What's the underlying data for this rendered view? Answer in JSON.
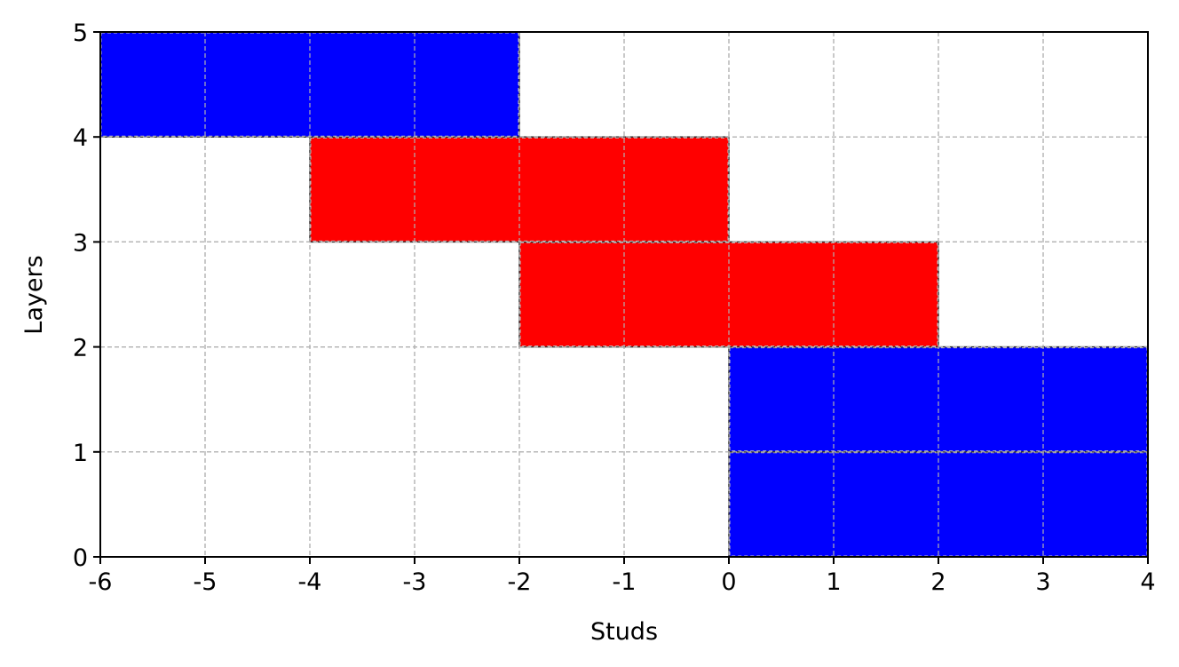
{
  "chart_data": {
    "type": "bar",
    "title": "",
    "xlabel": "Studs",
    "ylabel": "Layers",
    "xlim": [
      -6,
      4
    ],
    "ylim": [
      0,
      5
    ],
    "xticks": [
      -6,
      -5,
      -4,
      -3,
      -2,
      -1,
      0,
      1,
      2,
      3,
      4
    ],
    "yticks": [
      0,
      1,
      2,
      3,
      4,
      5
    ],
    "grid": true,
    "bricks": [
      {
        "x_start": 0,
        "x_end": 4,
        "layer": 0,
        "color": "#0000ff"
      },
      {
        "x_start": 0,
        "x_end": 4,
        "layer": 1,
        "color": "#0000ff"
      },
      {
        "x_start": -2,
        "x_end": 2,
        "layer": 2,
        "color": "#ff0000"
      },
      {
        "x_start": -4,
        "x_end": 0,
        "layer": 3,
        "color": "#ff0000"
      },
      {
        "x_start": -6,
        "x_end": -2,
        "layer": 4,
        "color": "#0000ff"
      }
    ]
  }
}
